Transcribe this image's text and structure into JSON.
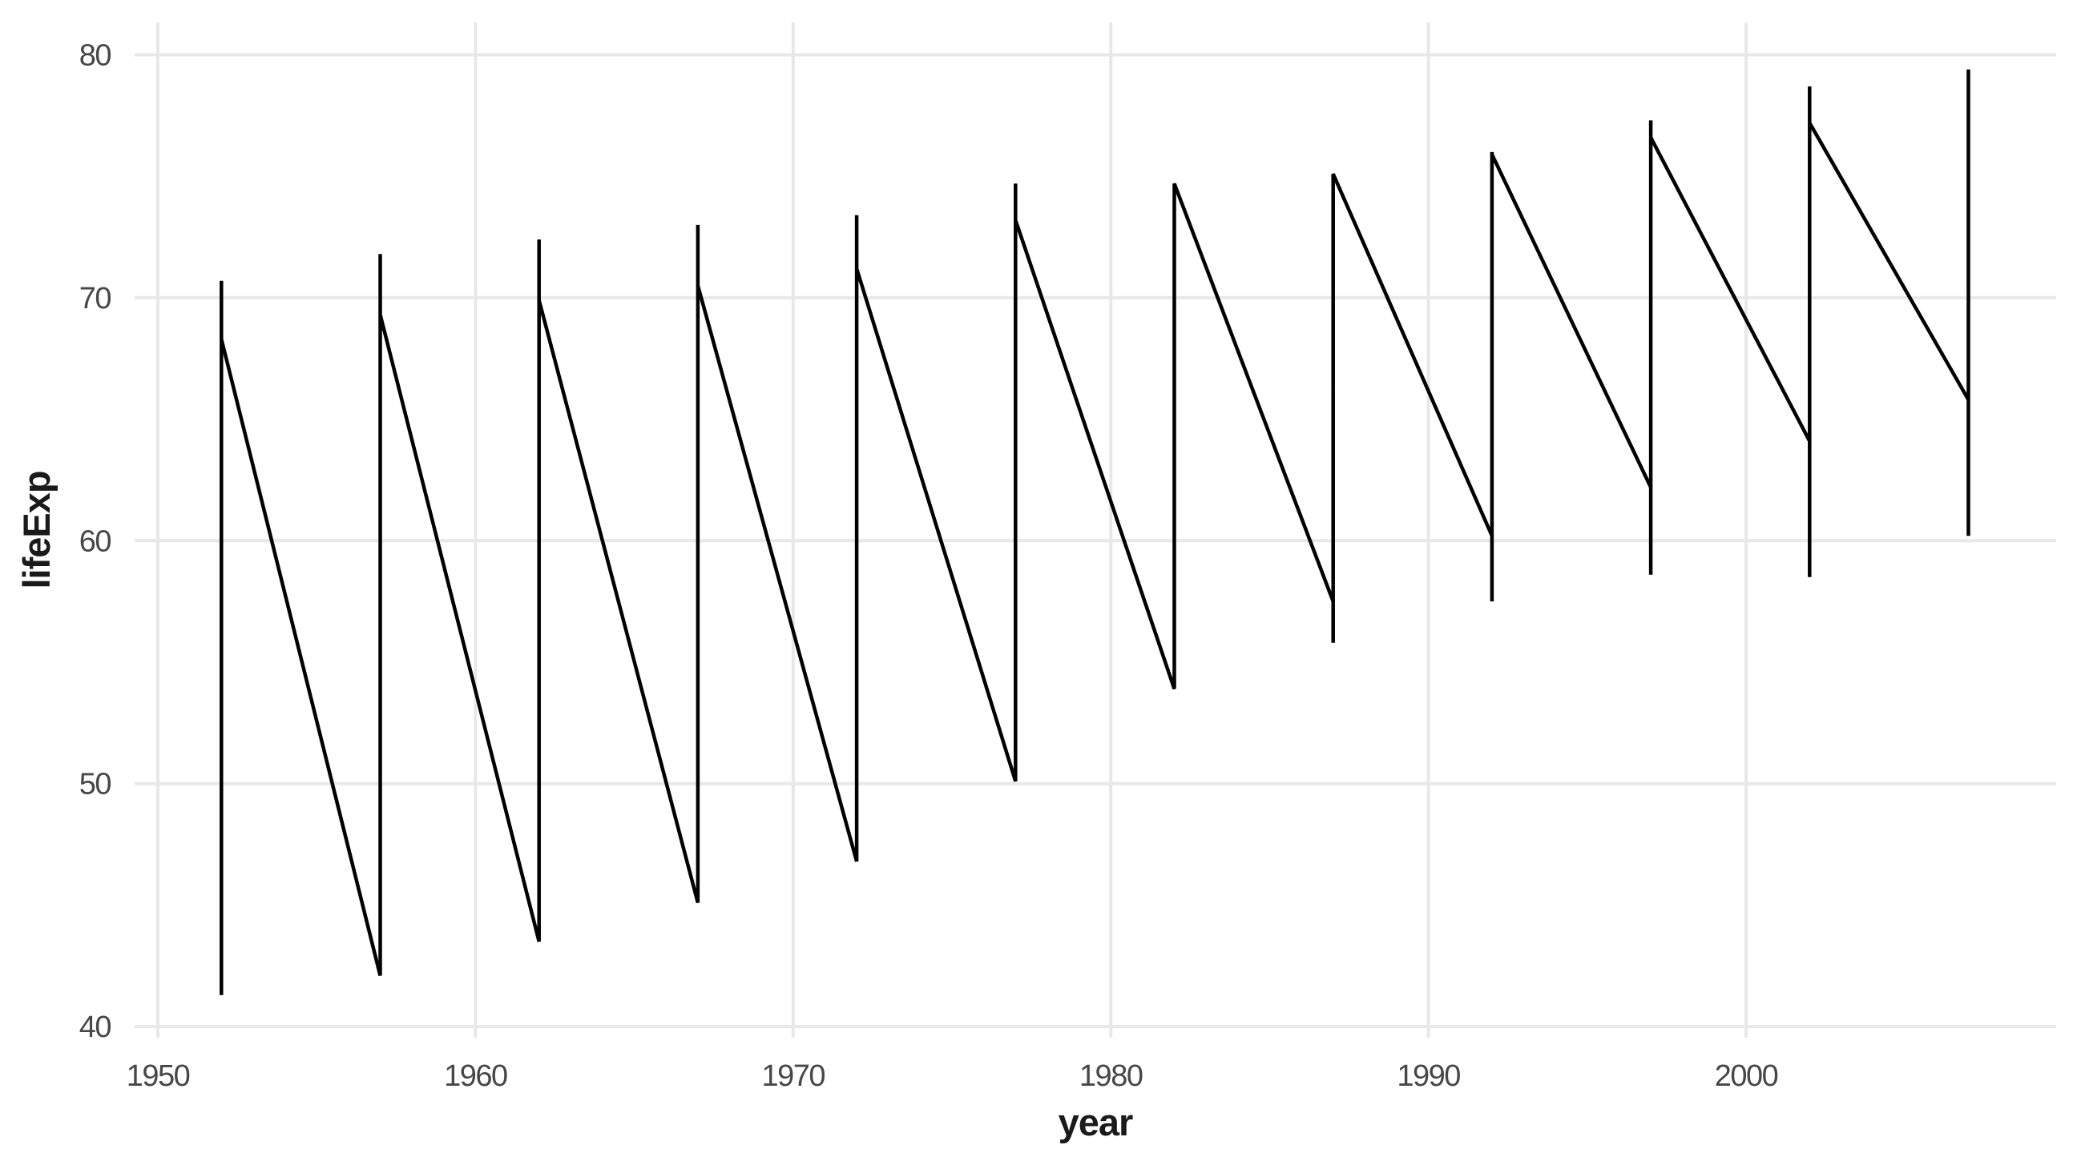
{
  "chart_data": {
    "type": "line",
    "title": "",
    "xlabel": "year",
    "ylabel": "lifeExp",
    "x_ticks": [
      1950,
      1960,
      1970,
      1980,
      1990,
      2000
    ],
    "y_ticks": [
      40,
      50,
      60,
      70,
      80
    ],
    "xlim": [
      1949.25,
      2009.75
    ],
    "ylim": [
      39.4,
      81.3
    ],
    "grid": "major-only",
    "legend_position": "none",
    "background_color": "#FFFFFF",
    "gridline_color": "#E8E8E8",
    "line_color": "#000000",
    "tick_label_color": "#474747",
    "axis_title_color": "#1A1A1A",
    "description": "Single black sawtooth path: at each survey year a vertical segment spans the min-max lifeExp range, then a long diagonal descends to the next year's attach point.",
    "years": [
      1952,
      1957,
      1962,
      1967,
      1972,
      1977,
      1982,
      1987,
      1992,
      1997,
      2002,
      2007
    ],
    "per_year_extents": [
      {
        "year": 1952,
        "min": 41.3,
        "max": 70.7
      },
      {
        "year": 1957,
        "min": 42.1,
        "max": 71.8
      },
      {
        "year": 1962,
        "min": 43.5,
        "max": 72.4
      },
      {
        "year": 1967,
        "min": 45.1,
        "max": 73.0
      },
      {
        "year": 1972,
        "min": 46.8,
        "max": 73.4
      },
      {
        "year": 1977,
        "min": 50.1,
        "max": 74.7
      },
      {
        "year": 1982,
        "min": 53.9,
        "max": 74.7
      },
      {
        "year": 1987,
        "min": 55.8,
        "max": 75.1
      },
      {
        "year": 1992,
        "min": 57.5,
        "max": 76.0
      },
      {
        "year": 1997,
        "min": 58.6,
        "max": 77.3
      },
      {
        "year": 2002,
        "min": 58.5,
        "max": 78.7
      },
      {
        "year": 2007,
        "min": 60.2,
        "max": 79.4
      }
    ],
    "path_points": [
      [
        1952,
        70.7
      ],
      [
        1952,
        41.3
      ],
      [
        1952,
        68.3
      ],
      [
        1957,
        42.1
      ],
      [
        1957,
        71.8
      ],
      [
        1957,
        69.3
      ],
      [
        1962,
        43.5
      ],
      [
        1962,
        72.4
      ],
      [
        1962,
        69.9
      ],
      [
        1967,
        45.1
      ],
      [
        1967,
        73.0
      ],
      [
        1967,
        70.5
      ],
      [
        1972,
        46.8
      ],
      [
        1972,
        73.4
      ],
      [
        1972,
        71.2
      ],
      [
        1977,
        50.1
      ],
      [
        1977,
        74.7
      ],
      [
        1977,
        73.2
      ],
      [
        1982,
        53.9
      ],
      [
        1982,
        74.7
      ],
      [
        1987,
        57.5
      ],
      [
        1987,
        55.8
      ],
      [
        1987,
        75.1
      ],
      [
        1992,
        60.2
      ],
      [
        1992,
        57.5
      ],
      [
        1992,
        76.0
      ],
      [
        1992,
        75.9
      ],
      [
        1997,
        62.2
      ],
      [
        1997,
        58.6
      ],
      [
        1997,
        77.3
      ],
      [
        1997,
        76.6
      ],
      [
        2002,
        64.1
      ],
      [
        2002,
        58.5
      ],
      [
        2002,
        78.7
      ],
      [
        2002,
        77.2
      ],
      [
        2007,
        65.8
      ],
      [
        2007,
        60.2
      ],
      [
        2007,
        79.4
      ]
    ]
  }
}
